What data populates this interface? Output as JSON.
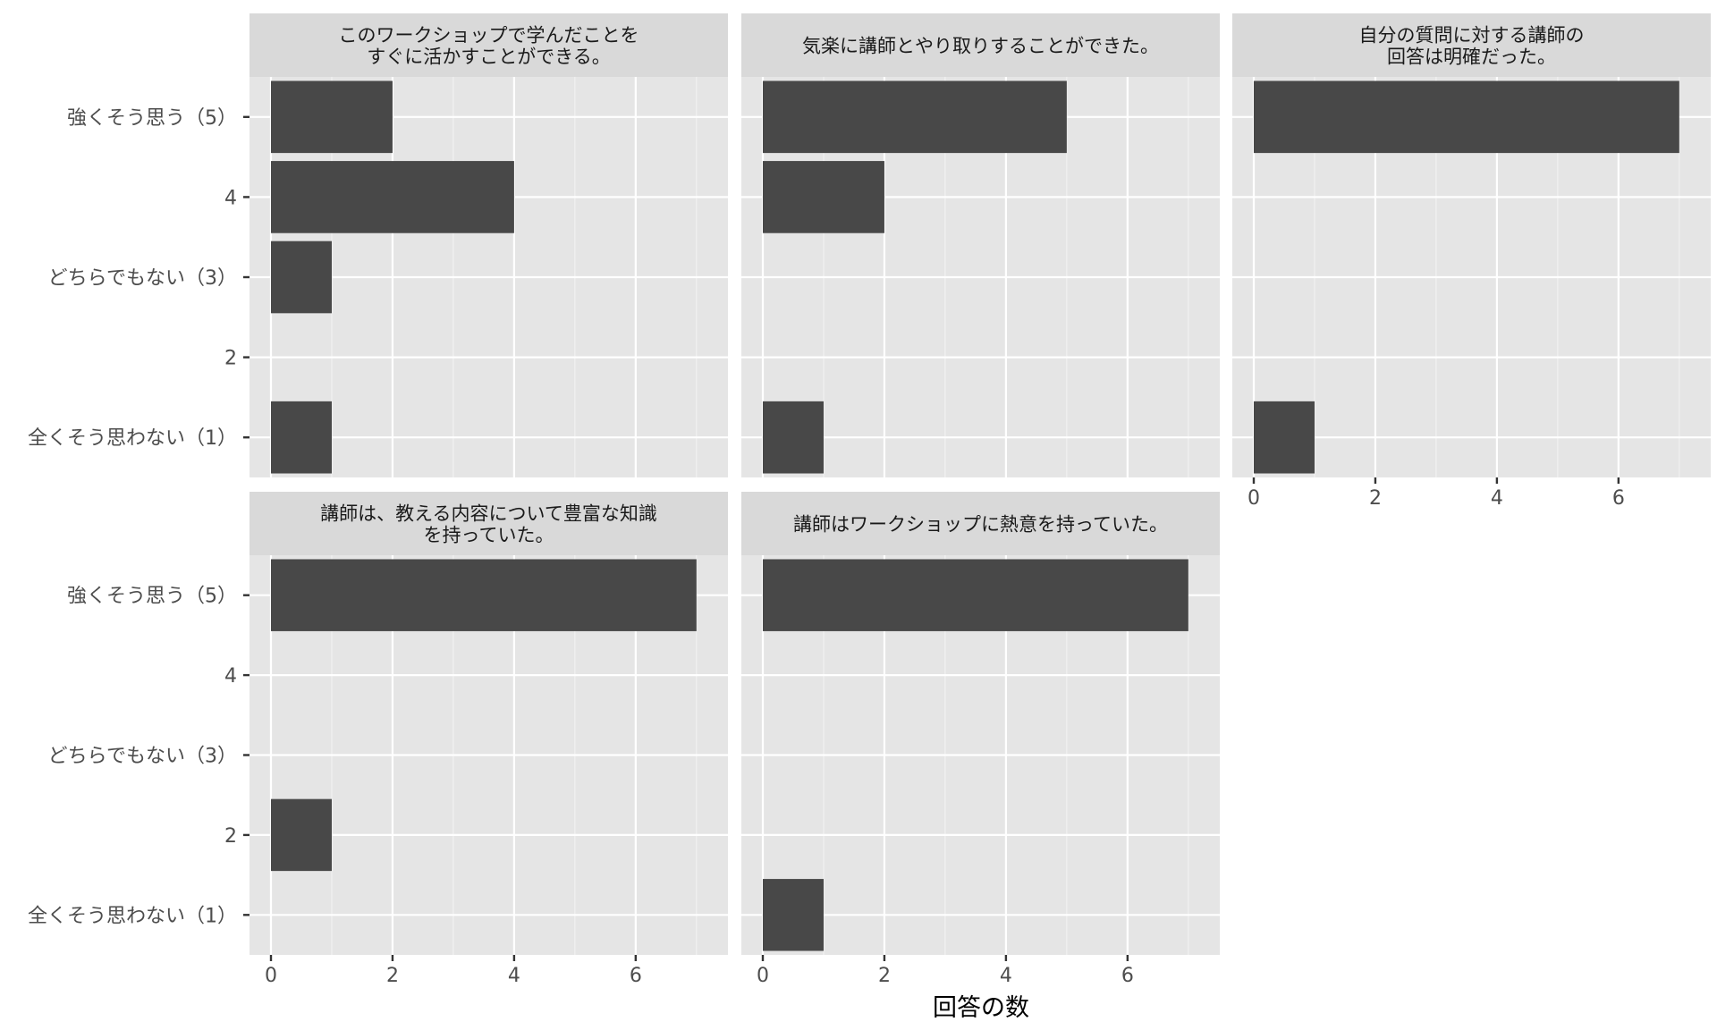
{
  "chart_data": {
    "type": "bar",
    "orientation": "horizontal",
    "facet_layout": "3 columns x 2 rows",
    "xlabel": "回答の数",
    "ylabel": "",
    "xlim": [
      0,
      7.4
    ],
    "x_ticks": [
      0,
      2,
      4,
      6
    ],
    "grid": true,
    "categories": [
      "全くそう思わない（1）",
      "2",
      "どちらでもない（3）",
      "4",
      "強くそう思う（5）"
    ],
    "panels": [
      {
        "title_lines": [
          "このワークショップで学んだことを",
          "すぐに活かすことができる。"
        ],
        "values": [
          1,
          0,
          1,
          4,
          2
        ]
      },
      {
        "title_lines": [
          "気楽に講師とやり取りすることができた。"
        ],
        "values": [
          1,
          0,
          0,
          2,
          5
        ]
      },
      {
        "title_lines": [
          "自分の質問に対する講師の",
          "回答は明確だった。"
        ],
        "values": [
          1,
          0,
          0,
          0,
          7
        ]
      },
      {
        "title_lines": [
          "講師は、教える内容について豊富な知識",
          "を持っていた。"
        ],
        "values": [
          0,
          1,
          0,
          0,
          7
        ]
      },
      {
        "title_lines": [
          "講師はワークショップに熱意を持っていた。"
        ],
        "values": [
          1,
          0,
          0,
          0,
          7
        ]
      }
    ]
  }
}
